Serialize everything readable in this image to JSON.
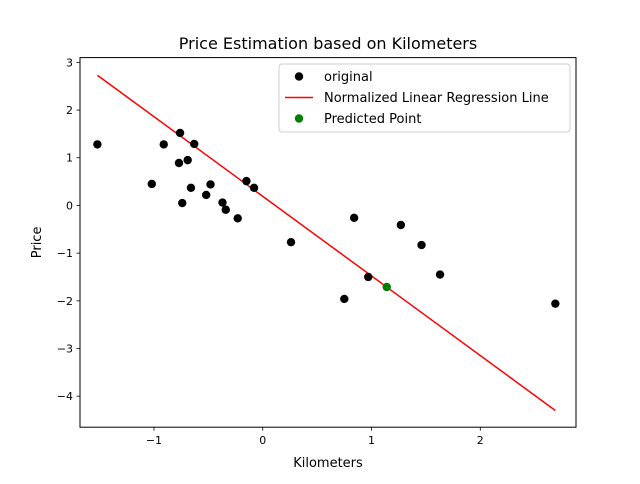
{
  "chart_data": {
    "type": "scatter",
    "title": "Price Estimation based on Kilometers",
    "xlabel": "Kilometers",
    "ylabel": "Price",
    "xlim": [
      -1.68,
      2.88
    ],
    "ylim": [
      -4.65,
      3.1
    ],
    "xticks": [
      -1,
      0,
      1,
      2
    ],
    "xtick_labels": [
      "−1",
      "0",
      "1",
      "2"
    ],
    "yticks": [
      -4,
      -3,
      -2,
      -1,
      0,
      1,
      2,
      3
    ],
    "ytick_labels": [
      "−4",
      "−3",
      "−2",
      "−1",
      "0",
      "1",
      "2",
      "3"
    ],
    "grid": false,
    "legend_position": "top-right",
    "series": [
      {
        "name": "original",
        "kind": "scatter",
        "color": "#000000",
        "points": [
          [
            -1.52,
            1.28
          ],
          [
            -1.02,
            0.45
          ],
          [
            -0.91,
            1.28
          ],
          [
            -0.76,
            1.52
          ],
          [
            -0.77,
            0.89
          ],
          [
            -0.74,
            0.05
          ],
          [
            -0.69,
            0.95
          ],
          [
            -0.66,
            0.37
          ],
          [
            -0.63,
            1.29
          ],
          [
            -0.52,
            0.22
          ],
          [
            -0.48,
            0.44
          ],
          [
            -0.37,
            0.06
          ],
          [
            -0.34,
            -0.09
          ],
          [
            -0.23,
            -0.27
          ],
          [
            -0.15,
            0.51
          ],
          [
            -0.08,
            0.37
          ],
          [
            0.26,
            -0.77
          ],
          [
            0.75,
            -1.96
          ],
          [
            0.84,
            -0.26
          ],
          [
            0.97,
            -1.5
          ],
          [
            1.27,
            -0.41
          ],
          [
            1.46,
            -0.83
          ],
          [
            1.63,
            -1.45
          ],
          [
            2.69,
            -2.06
          ]
        ]
      },
      {
        "name": "Normalized Linear Regression Line",
        "kind": "line",
        "color": "#ff0000",
        "points": [
          [
            -1.52,
            2.73
          ],
          [
            2.69,
            -4.3
          ]
        ]
      },
      {
        "name": "Predicted Point",
        "kind": "scatter",
        "color": "#008000",
        "points": [
          [
            1.14,
            -1.71
          ]
        ]
      }
    ]
  }
}
